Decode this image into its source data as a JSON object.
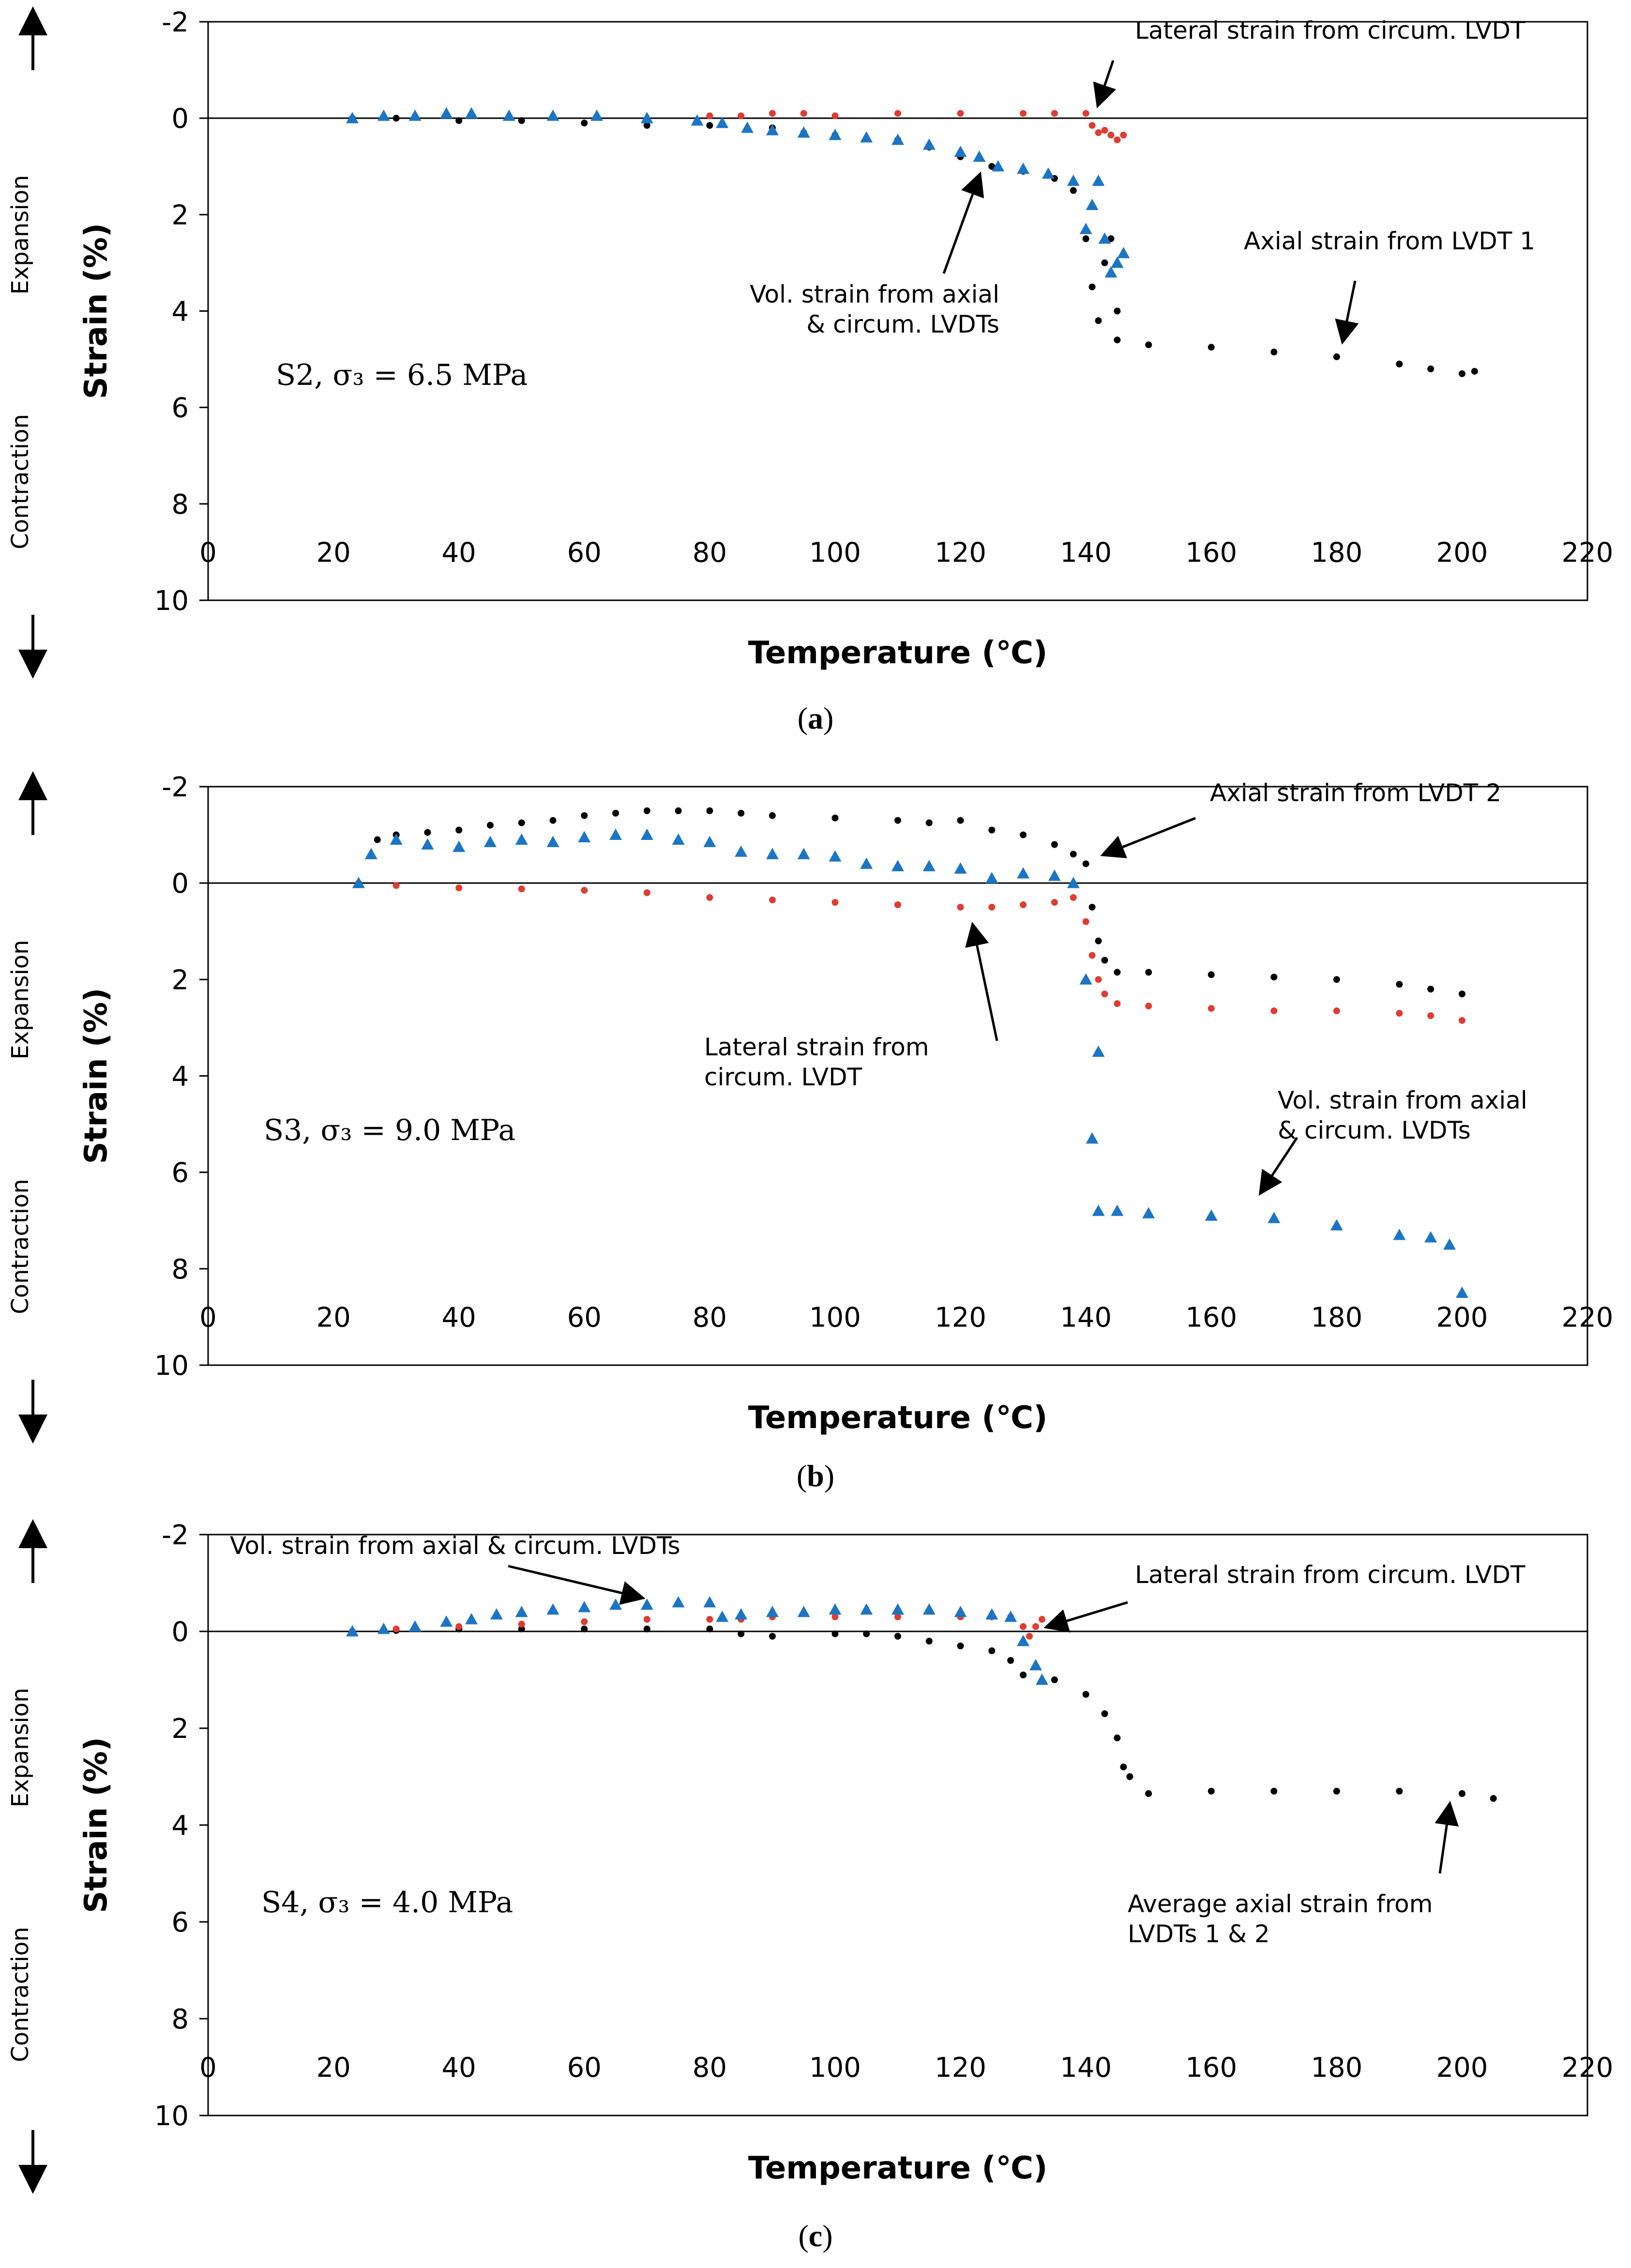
{
  "y_side_labels": {
    "expansion": "Expansion",
    "contraction": "Contraction"
  },
  "colors": {
    "axial": "#000000",
    "lateral": "#e03c31",
    "volumetric": "#1b75c4"
  },
  "chart_data": [
    {
      "type": "scatter",
      "panel_caption": {
        "open": "(",
        "letter": "a",
        "close": ")"
      },
      "label_text": "S2, σ₃ = 6.5 MPa",
      "xlabel": "Temperature (℃)",
      "ylabel": "Strain (%)",
      "xlim": [
        0,
        220
      ],
      "ylim": [
        -2,
        10
      ],
      "y_inverted": true,
      "x_ticks": [
        0,
        20,
        40,
        60,
        80,
        100,
        120,
        140,
        160,
        180,
        200,
        220
      ],
      "y_ticks": [
        -2,
        0,
        2,
        4,
        6,
        8,
        10
      ],
      "grid": false,
      "series": [
        {
          "name": "Axial strain",
          "color_key": "axial",
          "marker": "dot",
          "x": [
            23,
            30,
            40,
            50,
            60,
            70,
            80,
            90,
            95,
            100,
            110,
            115,
            120,
            125,
            130,
            135,
            138,
            140,
            141,
            142,
            143,
            144,
            145,
            145,
            150,
            160,
            170,
            180,
            190,
            195,
            200,
            202
          ],
          "y": [
            0.0,
            0.0,
            0.05,
            0.05,
            0.1,
            0.15,
            0.15,
            0.2,
            0.3,
            0.35,
            0.45,
            0.6,
            0.8,
            1.0,
            1.1,
            1.25,
            1.5,
            2.5,
            3.5,
            4.2,
            3.0,
            2.5,
            4.0,
            4.6,
            4.7,
            4.75,
            4.85,
            4.95,
            5.1,
            5.2,
            5.3,
            5.25
          ]
        },
        {
          "name": "Lateral strain",
          "color_key": "lateral",
          "marker": "dot",
          "x": [
            80,
            85,
            90,
            95,
            100,
            110,
            120,
            130,
            135,
            140,
            141,
            142,
            143,
            144,
            145,
            146
          ],
          "y": [
            -0.05,
            -0.05,
            -0.1,
            -0.1,
            -0.05,
            -0.1,
            -0.1,
            -0.1,
            -0.1,
            -0.1,
            0.15,
            0.3,
            0.25,
            0.35,
            0.45,
            0.35
          ]
        },
        {
          "name": "Volumetric strain",
          "color_key": "volumetric",
          "marker": "triangle",
          "x": [
            23,
            28,
            33,
            38,
            42,
            48,
            55,
            62,
            70,
            78,
            82,
            86,
            90,
            95,
            100,
            105,
            110,
            115,
            120,
            123,
            126,
            130,
            134,
            138,
            140,
            141,
            142,
            143,
            144,
            145,
            146
          ],
          "y": [
            0.0,
            -0.05,
            -0.05,
            -0.1,
            -0.1,
            -0.05,
            -0.05,
            -0.05,
            0.0,
            0.05,
            0.1,
            0.2,
            0.25,
            0.3,
            0.35,
            0.4,
            0.45,
            0.55,
            0.7,
            0.8,
            1.0,
            1.05,
            1.15,
            1.3,
            2.3,
            1.8,
            1.3,
            2.5,
            3.2,
            3.0,
            2.8
          ]
        }
      ],
      "annotations": [
        {
          "id": "lat",
          "text": [
            "Lateral strain from circum. LVDT"
          ],
          "arrow_x": 142,
          "arrow_y": -0.3
        },
        {
          "id": "ax",
          "text": [
            "Axial strain from LVDT 1"
          ],
          "arrow_x": 181,
          "arrow_y": 4.6
        },
        {
          "id": "vol",
          "text": [
            "Vol. strain from axial",
            "& circum. LVDTs"
          ],
          "arrow_x": 123,
          "arrow_y": 1.2
        }
      ]
    },
    {
      "type": "scatter",
      "panel_caption": {
        "open": "(",
        "letter": "b",
        "close": ")"
      },
      "label_text": "S3, σ₃ = 9.0 MPa",
      "xlabel": "Temperature (℃)",
      "ylabel": "Strain (%)",
      "xlim": [
        0,
        220
      ],
      "ylim": [
        -2,
        10
      ],
      "y_inverted": true,
      "x_ticks": [
        0,
        20,
        40,
        60,
        80,
        100,
        120,
        140,
        160,
        180,
        200,
        220
      ],
      "y_ticks": [
        -2,
        0,
        2,
        4,
        6,
        8,
        10
      ],
      "grid": false,
      "series": [
        {
          "name": "Axial strain",
          "color_key": "axial",
          "marker": "dot",
          "x": [
            27,
            30,
            35,
            40,
            45,
            50,
            55,
            60,
            65,
            70,
            75,
            80,
            85,
            90,
            100,
            110,
            115,
            120,
            125,
            130,
            135,
            138,
            140,
            141,
            142,
            143,
            145,
            150,
            160,
            170,
            180,
            190,
            195,
            200
          ],
          "y": [
            -0.9,
            -1.0,
            -1.05,
            -1.1,
            -1.2,
            -1.25,
            -1.3,
            -1.4,
            -1.45,
            -1.5,
            -1.5,
            -1.5,
            -1.45,
            -1.4,
            -1.35,
            -1.3,
            -1.25,
            -1.3,
            -1.1,
            -1.0,
            -0.8,
            -0.6,
            -0.4,
            0.5,
            1.2,
            1.6,
            1.85,
            1.85,
            1.9,
            1.95,
            2.0,
            2.1,
            2.2,
            2.3
          ]
        },
        {
          "name": "Lateral strain",
          "color_key": "lateral",
          "marker": "dot",
          "x": [
            24,
            30,
            40,
            50,
            60,
            70,
            80,
            90,
            100,
            110,
            120,
            125,
            130,
            135,
            138,
            140,
            141,
            142,
            143,
            145,
            150,
            160,
            170,
            180,
            190,
            195,
            200
          ],
          "y": [
            0.0,
            0.05,
            0.1,
            0.12,
            0.15,
            0.2,
            0.3,
            0.35,
            0.4,
            0.45,
            0.5,
            0.5,
            0.45,
            0.4,
            0.3,
            0.8,
            1.5,
            2.0,
            2.3,
            2.5,
            2.55,
            2.6,
            2.65,
            2.65,
            2.7,
            2.75,
            2.85
          ]
        },
        {
          "name": "Volumetric strain",
          "color_key": "volumetric",
          "marker": "triangle",
          "x": [
            24,
            26,
            30,
            35,
            40,
            45,
            50,
            55,
            60,
            65,
            70,
            75,
            80,
            85,
            90,
            95,
            100,
            105,
            110,
            115,
            120,
            125,
            130,
            135,
            138,
            140,
            141,
            142,
            142,
            145,
            150,
            160,
            170,
            180,
            190,
            195,
            198,
            200
          ],
          "y": [
            0.0,
            -0.6,
            -0.9,
            -0.8,
            -0.75,
            -0.85,
            -0.9,
            -0.85,
            -0.95,
            -1.0,
            -1.0,
            -0.9,
            -0.85,
            -0.65,
            -0.6,
            -0.6,
            -0.55,
            -0.4,
            -0.35,
            -0.35,
            -0.3,
            -0.1,
            -0.2,
            -0.15,
            0.0,
            2.0,
            5.3,
            3.5,
            6.8,
            6.8,
            6.85,
            6.9,
            6.95,
            7.1,
            7.3,
            7.35,
            7.5,
            8.5
          ]
        }
      ],
      "annotations": [
        {
          "id": "ax",
          "text": [
            "Axial strain from LVDT 2"
          ],
          "arrow_x": 143,
          "arrow_y": -0.6
        },
        {
          "id": "lat",
          "text": [
            "Lateral strain from",
            "circum. LVDT"
          ],
          "arrow_x": 122,
          "arrow_y": 0.9
        },
        {
          "id": "vol",
          "text": [
            "Vol. strain from axial",
            "& circum. LVDTs"
          ],
          "arrow_x": 168,
          "arrow_y": 6.4
        }
      ]
    },
    {
      "type": "scatter",
      "panel_caption": {
        "open": "(",
        "letter": "c",
        "close": ")"
      },
      "label_text": "S4, σ₃ = 4.0 MPa",
      "xlabel": "Temperature (℃)",
      "ylabel": "Strain (%)",
      "xlim": [
        0,
        220
      ],
      "ylim": [
        -2,
        10
      ],
      "y_inverted": true,
      "x_ticks": [
        0,
        20,
        40,
        60,
        80,
        100,
        120,
        140,
        160,
        180,
        200,
        220
      ],
      "y_ticks": [
        -2,
        0,
        2,
        4,
        6,
        8,
        10
      ],
      "grid": false,
      "series": [
        {
          "name": "Average axial strain",
          "color_key": "axial",
          "marker": "dot",
          "x": [
            23,
            30,
            40,
            50,
            60,
            70,
            80,
            85,
            90,
            100,
            105,
            110,
            115,
            120,
            125,
            128,
            130,
            135,
            140,
            143,
            145,
            146,
            147,
            150,
            160,
            170,
            180,
            190,
            200,
            205
          ],
          "y": [
            0.0,
            -0.02,
            -0.05,
            -0.05,
            -0.05,
            -0.05,
            -0.05,
            0.05,
            0.1,
            0.05,
            0.05,
            0.1,
            0.2,
            0.3,
            0.4,
            0.6,
            0.9,
            1.0,
            1.3,
            1.7,
            2.2,
            2.8,
            3.0,
            3.35,
            3.3,
            3.3,
            3.3,
            3.3,
            3.35,
            3.45
          ]
        },
        {
          "name": "Lateral strain",
          "color_key": "lateral",
          "marker": "dot",
          "x": [
            23,
            30,
            40,
            50,
            60,
            70,
            80,
            85,
            90,
            100,
            110,
            120,
            125,
            128,
            130,
            131,
            132,
            133
          ],
          "y": [
            0.0,
            -0.05,
            -0.1,
            -0.15,
            -0.2,
            -0.25,
            -0.25,
            -0.25,
            -0.3,
            -0.3,
            -0.3,
            -0.3,
            -0.3,
            -0.3,
            -0.1,
            0.1,
            -0.1,
            -0.25
          ]
        },
        {
          "name": "Volumetric strain",
          "color_key": "volumetric",
          "marker": "triangle",
          "x": [
            23,
            28,
            33,
            38,
            42,
            46,
            50,
            55,
            60,
            65,
            70,
            75,
            80,
            82,
            85,
            90,
            95,
            100,
            105,
            110,
            115,
            120,
            125,
            128,
            130,
            132,
            133
          ],
          "y": [
            0.0,
            -0.05,
            -0.1,
            -0.2,
            -0.25,
            -0.35,
            -0.4,
            -0.45,
            -0.5,
            -0.55,
            -0.55,
            -0.6,
            -0.6,
            -0.3,
            -0.35,
            -0.4,
            -0.4,
            -0.45,
            -0.45,
            -0.45,
            -0.45,
            -0.4,
            -0.35,
            -0.3,
            0.2,
            0.7,
            1.0
          ]
        }
      ],
      "annotations": [
        {
          "id": "vol",
          "text": [
            "Vol. strain from axial & circum. LVDTs"
          ],
          "arrow_x": 69,
          "arrow_y": -0.7
        },
        {
          "id": "lat",
          "text": [
            "Lateral strain from circum. LVDT"
          ],
          "arrow_x": 134,
          "arrow_y": -0.1
        },
        {
          "id": "ax",
          "text": [
            "Average axial strain from",
            "LVDTs 1 & 2"
          ],
          "arrow_x": 198,
          "arrow_y": 3.6
        }
      ]
    }
  ]
}
